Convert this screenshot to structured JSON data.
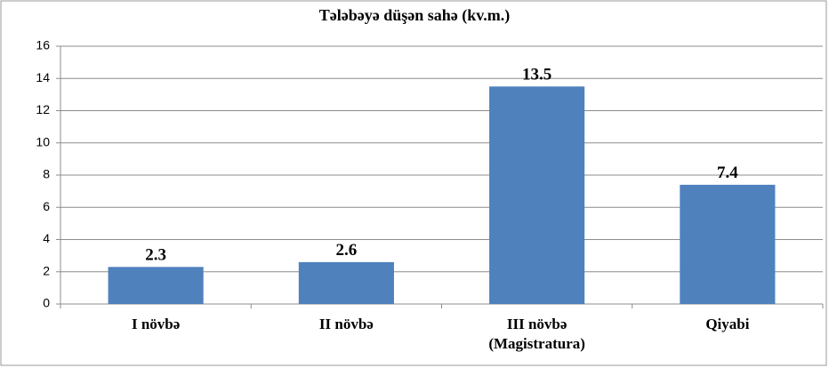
{
  "chart_data": {
    "type": "bar",
    "title": "Tələbəyə düşən sahə (kv.m.)",
    "categories": [
      "I növbə",
      "II növbə",
      "III növbə (Magistratura)",
      "Qiyabi"
    ],
    "values": [
      2.3,
      2.6,
      13.5,
      7.4
    ],
    "color": "#4f81bd",
    "ylim": [
      0,
      16
    ],
    "yticks": [
      0,
      2,
      4,
      6,
      8,
      10,
      12,
      14,
      16
    ],
    "grid": true
  }
}
